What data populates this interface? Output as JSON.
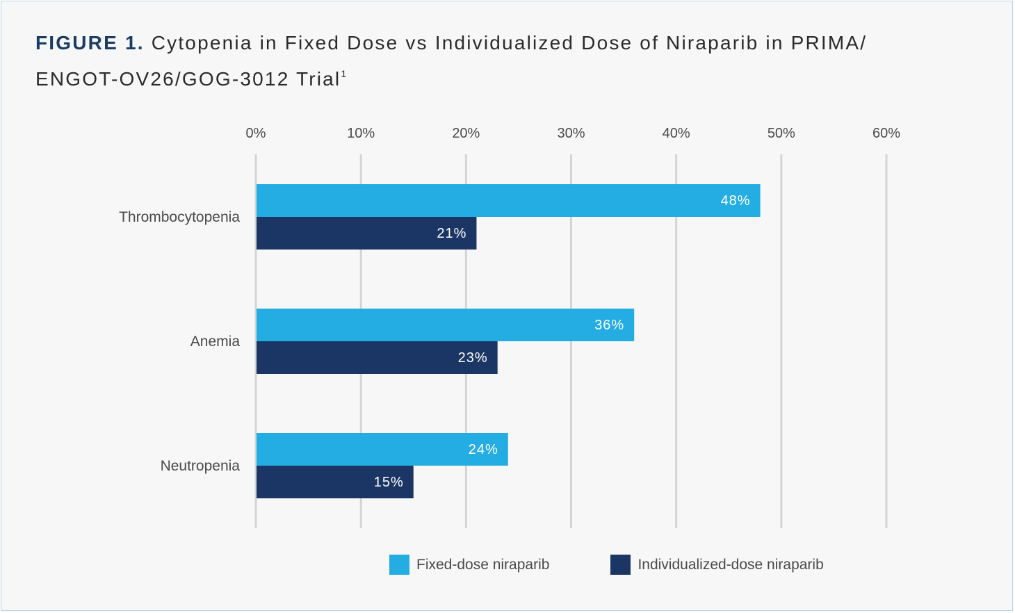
{
  "title": {
    "figure_label": "FIGURE 1.",
    "text_line1": "Cytopenia in Fixed Dose vs Individualized Dose of Niraparib in PRIMA/",
    "text_line2": "ENGOT-OV26/GOG-3012 Trial",
    "superscript": "1"
  },
  "chart_data": {
    "type": "bar",
    "orientation": "horizontal",
    "categories": [
      "Thrombocytopenia",
      "Anemia",
      "Neutropenia"
    ],
    "series": [
      {
        "name": "Fixed-dose niraparib",
        "values": [
          48,
          36,
          24
        ],
        "labels": [
          "48%",
          "36%",
          "24%"
        ],
        "color": "#24ade2"
      },
      {
        "name": "Individualized-dose niraparib",
        "values": [
          21,
          23,
          15
        ],
        "labels": [
          "21%",
          "23%",
          "15%"
        ],
        "color": "#1b3665"
      }
    ],
    "xlim": [
      0,
      60
    ],
    "xticks": [
      0,
      10,
      20,
      30,
      40,
      50,
      60
    ],
    "xtick_labels": [
      "0%",
      "10%",
      "20%",
      "30%",
      "40%",
      "50%",
      "60%"
    ],
    "x_axis_position": "top",
    "grid": true,
    "gridline_color": "#d4d4d4",
    "legend_position": "bottom"
  },
  "legend": {
    "items": [
      {
        "label": "Fixed-dose niraparib",
        "color": "#24ade2"
      },
      {
        "label": "Individualized-dose niraparib",
        "color": "#1b3665"
      }
    ]
  }
}
